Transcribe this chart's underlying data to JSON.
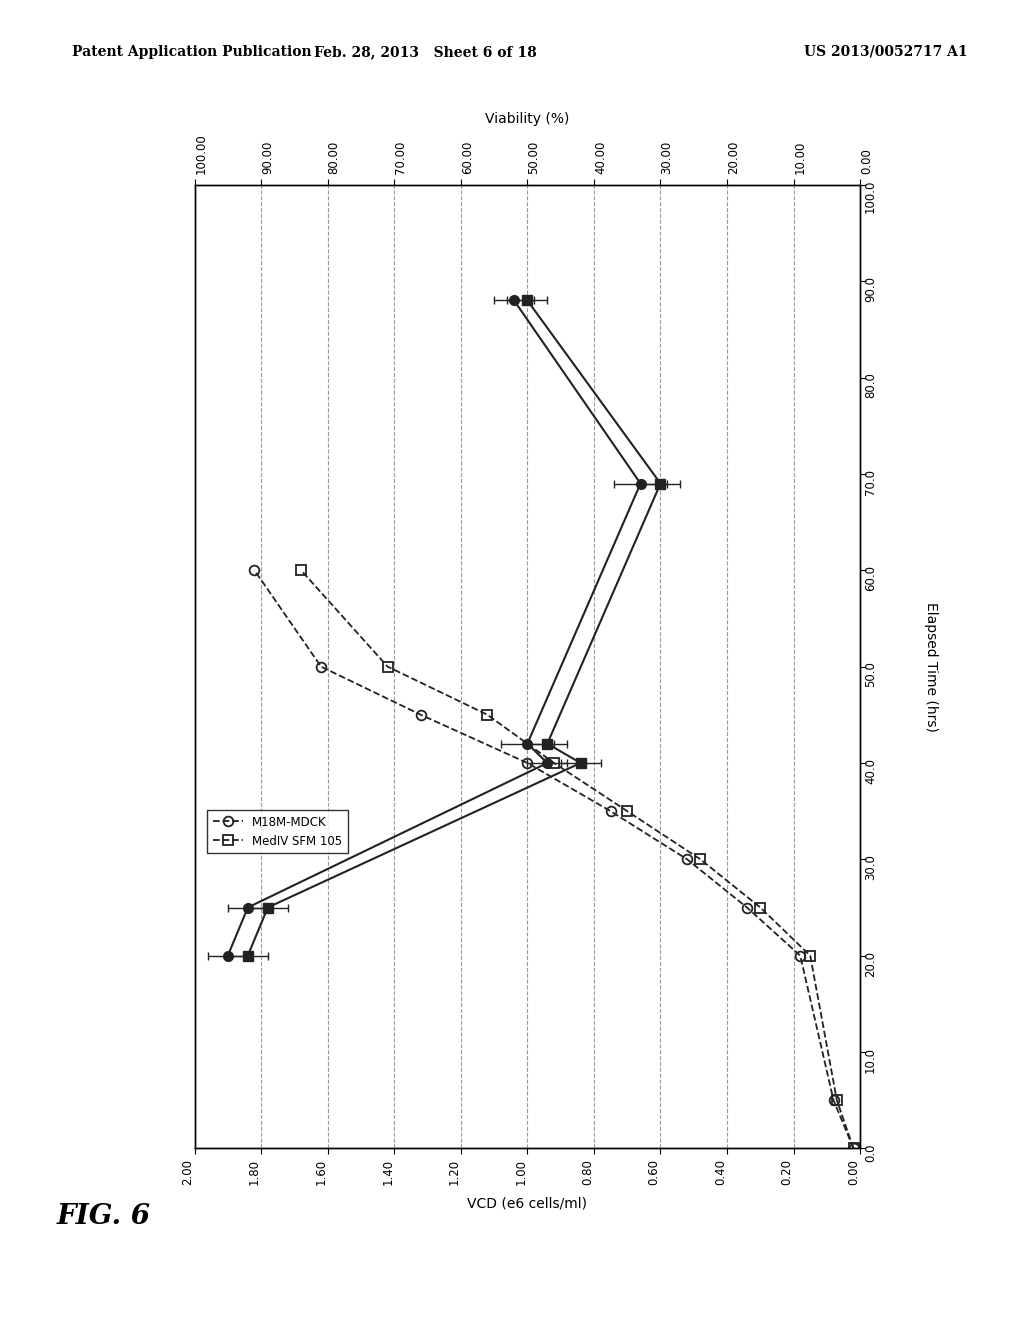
{
  "header_left": "Patent Application Publication",
  "header_center": "Feb. 28, 2013   Sheet 6 of 18",
  "header_right": "US 2013/0052717 A1",
  "fig_label": "FIG. 6",
  "viability_label": "Viability (%)",
  "elapsed_time_label": "Elapsed Time (hrs)",
  "vcd_label": "VCD (e6 cells/ml)",
  "vcd_ticks": [
    0.0,
    0.2,
    0.4,
    0.6,
    0.8,
    1.0,
    1.2,
    1.4,
    1.6,
    1.8,
    2.0
  ],
  "viability_ticks": [
    0.0,
    10.0,
    20.0,
    30.0,
    40.0,
    50.0,
    60.0,
    70.0,
    80.0,
    90.0,
    100.0
  ],
  "time_ticks": [
    0.0,
    10.0,
    20.0,
    30.0,
    40.0,
    50.0,
    60.0,
    70.0,
    80.0,
    90.0,
    100.0
  ],
  "M18M_vcd_time": [
    0,
    5,
    20,
    25,
    30,
    35,
    40,
    45,
    50,
    60
  ],
  "M18M_vcd_val": [
    0.02,
    0.08,
    0.18,
    0.34,
    0.52,
    0.75,
    1.0,
    1.32,
    1.62,
    1.82
  ],
  "MedIV_vcd_time": [
    0,
    5,
    20,
    25,
    30,
    35,
    40,
    45,
    50,
    60
  ],
  "MedIV_vcd_val": [
    0.02,
    0.07,
    0.15,
    0.3,
    0.48,
    0.7,
    0.92,
    1.12,
    1.42,
    1.68
  ],
  "M18M_via_time": [
    20,
    25,
    40,
    42,
    69,
    88
  ],
  "M18M_via_val": [
    95,
    92,
    47,
    50,
    33,
    52
  ],
  "M18M_via_xerr": [
    3,
    3,
    3,
    4,
    4,
    3
  ],
  "MedIV_via_time": [
    20,
    25,
    40,
    42,
    69,
    88
  ],
  "MedIV_via_val": [
    92,
    89,
    42,
    47,
    30,
    50
  ],
  "MedIV_via_xerr": [
    3,
    3,
    3,
    3,
    3,
    3
  ],
  "background": "#ffffff",
  "grid_color": "#888888",
  "line_color": "#222222"
}
